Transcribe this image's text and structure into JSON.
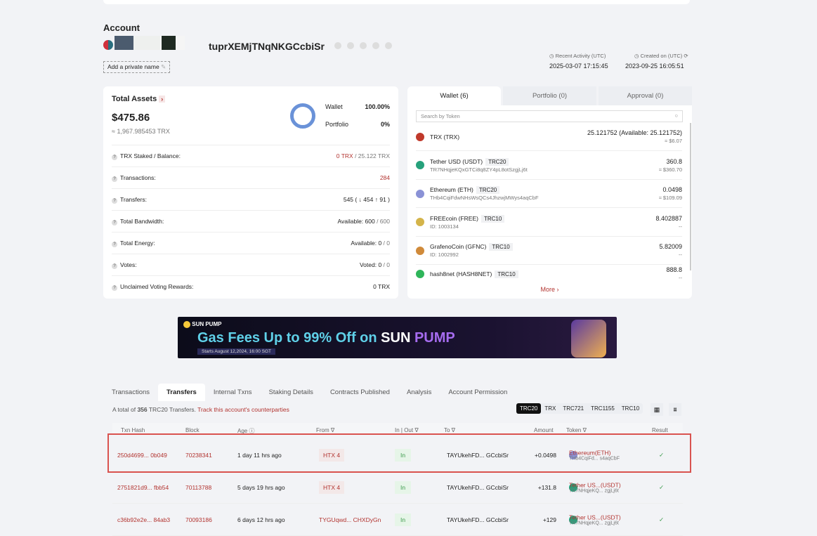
{
  "account": {
    "title": "Account",
    "address_suffix": "tuprXEMjTNqNKGCcbiSr",
    "private_name": "Add a private name",
    "recent_activity_label": "Recent Activity (UTC)",
    "recent_activity": "2025-03-07 17:15:45",
    "created_label": "Created on (UTC)",
    "created": "2023-09-25 16:05:51"
  },
  "assets": {
    "title": "Total Assets",
    "value": "$475.86",
    "trx": "≈ 1,967.985453 TRX",
    "wallet_label": "Wallet",
    "wallet_pct": "100.00%",
    "portfolio_label": "Portfolio",
    "portfolio_pct": "0%",
    "wallet_fraction": 1.0,
    "rows": [
      {
        "label": "TRX Staked / Balance:",
        "v1": "0 TRX",
        "v2": " / 25.122 TRX"
      },
      {
        "label": "Transactions:",
        "v1": "284",
        "v2": ""
      },
      {
        "label": "Transfers:",
        "v1": "545 ( ↓ 454 ↑ 91 )",
        "v2": ""
      },
      {
        "label": "Total Bandwidth:",
        "v1": "Available: 600",
        "v2": " / 600"
      },
      {
        "label": "Total Energy:",
        "v1": "Available: 0",
        "v2": " / 0"
      },
      {
        "label": "Votes:",
        "v1": "Voted: 0",
        "v2": " / 0"
      },
      {
        "label": "Unclaimed Voting Rewards:",
        "v1": "0 TRX",
        "v2": ""
      }
    ]
  },
  "wallet": {
    "tabs": [
      "Wallet (6)",
      "Portfolio (0)",
      "Approval (0)"
    ],
    "search_placeholder": "Search by Token",
    "more": "More ›",
    "tokens": [
      {
        "name": "TRX (TRX)",
        "type": "",
        "sub": "",
        "amount": "25.121752 (Available: 25.121752)",
        "usd": "≈ $6.07",
        "color": "#c0392b"
      },
      {
        "name": "Tether USD (USDT)",
        "type": "TRC20",
        "sub": "TR7NHqjeKQxGTCi8q8ZY4pL8otSzgjLj6t",
        "amount": "360.8",
        "usd": "≈ $360.70",
        "color": "#26a17b"
      },
      {
        "name": "Ethereum (ETH)",
        "type": "TRC20",
        "sub": "THb4CqiFdwNHsWsQCs4JhzwjMWys4aqCbF",
        "amount": "0.0498",
        "usd": "≈ $109.09",
        "color": "#8a92d6"
      },
      {
        "name": "FREEcoin (FREE)",
        "type": "TRC10",
        "sub": "ID: 1003134",
        "amount": "8.402887",
        "usd": "--",
        "color": "#d4b44a"
      },
      {
        "name": "GrafenoCoin (GFNC)",
        "type": "TRC10",
        "sub": "ID: 1002992",
        "amount": "5.82009",
        "usd": "--",
        "color": "#d08a3a"
      },
      {
        "name": "hash8net (HASH8NET)",
        "type": "TRC10",
        "sub": "",
        "amount": "888.8",
        "usd": "--",
        "color": "#2fb55a"
      }
    ]
  },
  "banner": {
    "brand": "SUN PUMP",
    "headline": "Gas Fees Up to 99% Off on",
    "brand_big1": "SUN",
    "brand_big2": "PUMP",
    "date": "Starts August 12,2024, 16:00 SGT"
  },
  "tabs": [
    "Transactions",
    "Transfers",
    "Internal Txns",
    "Staking Details",
    "Contracts Published",
    "Analysis",
    "Account Permission"
  ],
  "transfers": {
    "summary_pre": "A total of ",
    "count": "356",
    "summary_post": " TRC20 Transfers. ",
    "track": "Track this account's counterparties",
    "filters": [
      "TRC20",
      "TRX",
      "TRC721",
      "TRC1155",
      "TRC10"
    ],
    "headers": [
      "Txn Hash",
      "Block",
      "Age ⓘ",
      "From ∇",
      "In | Out ∇",
      "To ∇",
      "Amount",
      "Token ∇",
      "Result"
    ],
    "rows": [
      {
        "hash": "250d4699... 0b049",
        "block": "70238341",
        "age": "1 day 11 hrs ago",
        "from": "HTX 4",
        "dir": "In",
        "to": "TAYUkehFD... GCcbiSr",
        "amount": "+0.0498",
        "token": "Ethereum(ETH)",
        "token_addr": "THb4CqiFd... s4aqCbF",
        "result": "✓"
      },
      {
        "hash": "2751821d9... fbb54",
        "block": "70113788",
        "age": "5 days 19 hrs ago",
        "from": "HTX 4",
        "dir": "In",
        "to": "TAYUkehFD... GCcbiSr",
        "amount": "+131.8",
        "token": "Tether US...(USDT)",
        "token_addr": "TR7NHqjeKQ... zgjLj6t",
        "result": "✓"
      },
      {
        "hash": "c36b92e2e... 84ab3",
        "block": "70093186",
        "age": "6 days 12 hrs ago",
        "from": "TYGUqwd... CHXDyGn",
        "dir": "In",
        "to": "TAYUkehFD... GCcbiSr",
        "amount": "+129",
        "token": "Tether US...(USDT)",
        "token_addr": "TR7NHqjeKQ... zgjLj6t",
        "result": "✓"
      }
    ]
  }
}
